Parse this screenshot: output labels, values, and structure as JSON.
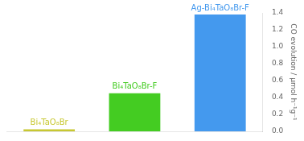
{
  "chart_data": {
    "type": "bar",
    "categories": [
      "Bi₄TaO₈Br",
      "Bi₄TaO₈Br-F",
      "Ag-Bi₄TaO₈Br-F"
    ],
    "values": [
      0.025,
      0.45,
      1.38
    ],
    "colors": [
      "#c8c832",
      "#44cc22",
      "#4499ee"
    ],
    "ylabel": "CO evolution / μmol h⁻¹g⁻¹",
    "ylim": [
      0,
      1.4
    ],
    "yticks": [
      {
        "value": 0.0,
        "label": "0.0"
      },
      0.2,
      0.4,
      0.6,
      0.8,
      {
        "value": 1.0,
        "label": "1.0"
      },
      1.2,
      1.4
    ],
    "grid": false,
    "tick_labels": "y"
  }
}
